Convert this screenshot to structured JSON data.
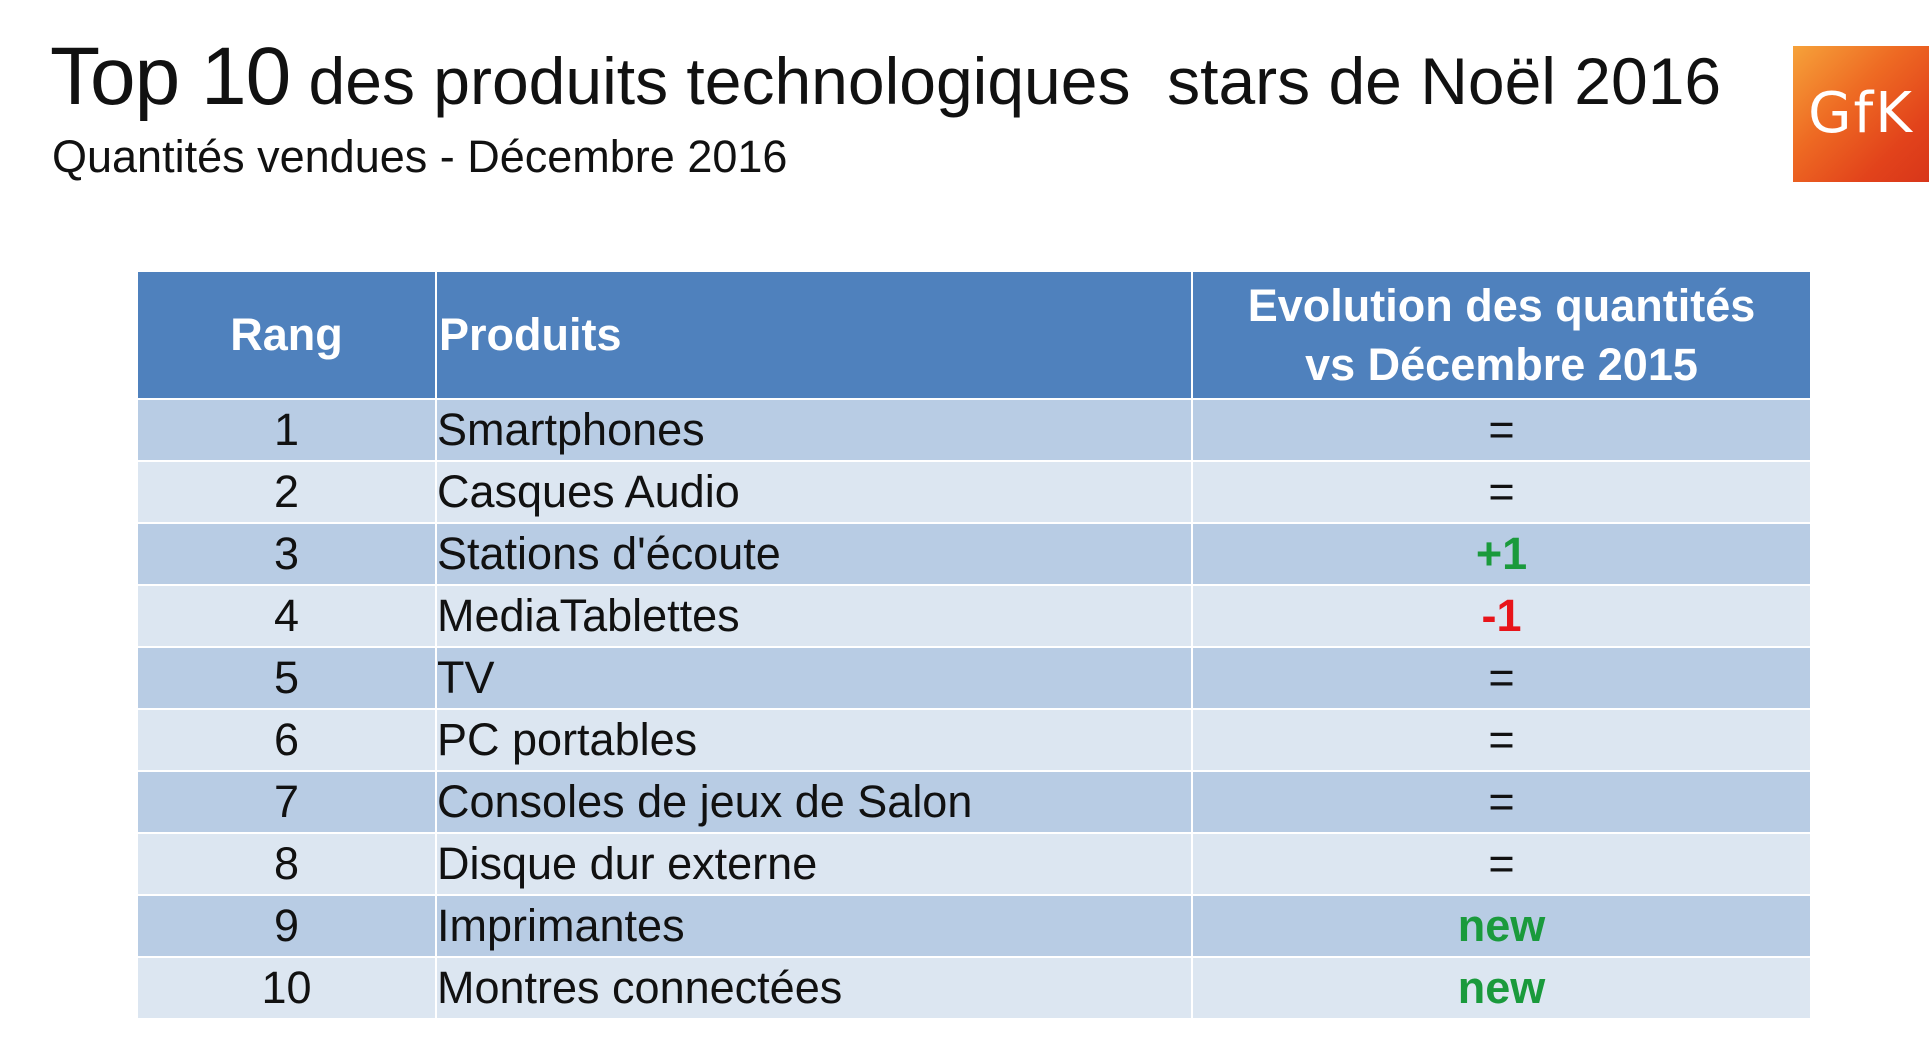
{
  "header": {
    "title_big": "Top 10",
    "title_rest": " des produits technologiques  stars de Noël 2016",
    "subtitle": "Quantités vendues - Décembre 2016"
  },
  "logo": {
    "text": "GfK",
    "brand_color": "#e8501c"
  },
  "table": {
    "headers": {
      "rank": "Rang",
      "product": "Produits",
      "evolution_line1": "Evolution des quantités",
      "evolution_line2": "vs Décembre 2015"
    },
    "colors": {
      "header_bg": "#4f81bd",
      "row_dark": "#b8cce4",
      "row_light": "#dce6f1",
      "positive": "#1a9a3c",
      "negative": "#e8141a"
    },
    "rows": [
      {
        "rank": "1",
        "product": "Smartphones",
        "evolution": "=",
        "trend": "eq"
      },
      {
        "rank": "2",
        "product": "Casques Audio",
        "evolution": "=",
        "trend": "eq"
      },
      {
        "rank": "3",
        "product": "Stations d'écoute",
        "evolution": "+1",
        "trend": "up"
      },
      {
        "rank": "4",
        "product": "MediaTablettes",
        "evolution": "-1",
        "trend": "down"
      },
      {
        "rank": "5",
        "product": "TV",
        "evolution": "=",
        "trend": "eq"
      },
      {
        "rank": "6",
        "product": "PC portables",
        "evolution": "=",
        "trend": "eq"
      },
      {
        "rank": "7",
        "product": "Consoles de jeux de Salon",
        "evolution": "=",
        "trend": "eq"
      },
      {
        "rank": "8",
        "product": "Disque dur externe",
        "evolution": "=",
        "trend": "eq"
      },
      {
        "rank": "9",
        "product": "Imprimantes",
        "evolution": "new",
        "trend": "new"
      },
      {
        "rank": "10",
        "product": "Montres connectées",
        "evolution": "new",
        "trend": "new"
      }
    ]
  }
}
